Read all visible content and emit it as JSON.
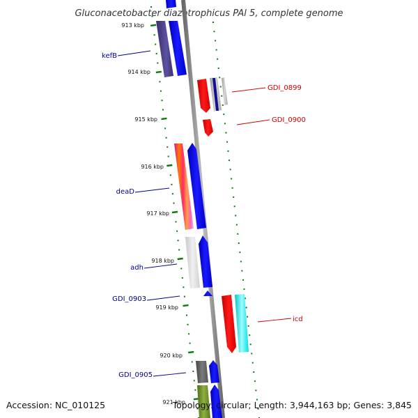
{
  "title": "Gluconacetobacter diazotrophicus PAl 5, complete genome",
  "footer": {
    "accession": "Accession: NC_010125",
    "topology": "Topology: circular; Length: 3,944,163 bp; Genes: 3,845"
  },
  "colors": {
    "forward_label": "#00008b",
    "reverse_label": "#cc0000",
    "tick": "#0b7a0b",
    "backbone": "#8a8a8a"
  },
  "ticks": [
    {
      "label": "913 kbp"
    },
    {
      "label": "914 kbp"
    },
    {
      "label": "915 kbp"
    },
    {
      "label": "916 kbp"
    },
    {
      "label": "917 kbp"
    },
    {
      "label": "918 kbp"
    },
    {
      "label": "919 kbp"
    },
    {
      "label": "920 kbp"
    },
    {
      "label": "921 kbp"
    }
  ],
  "gene_labels": [
    {
      "name": "kefB",
      "strand": "forward"
    },
    {
      "name": "GDI_0899",
      "strand": "reverse"
    },
    {
      "name": "GDI_0900",
      "strand": "reverse"
    },
    {
      "name": "deaD",
      "strand": "forward"
    },
    {
      "name": "adh",
      "strand": "forward"
    },
    {
      "name": "GDI_0903",
      "strand": "forward"
    },
    {
      "name": "icd",
      "strand": "reverse"
    },
    {
      "name": "GDI_0905",
      "strand": "forward"
    }
  ]
}
